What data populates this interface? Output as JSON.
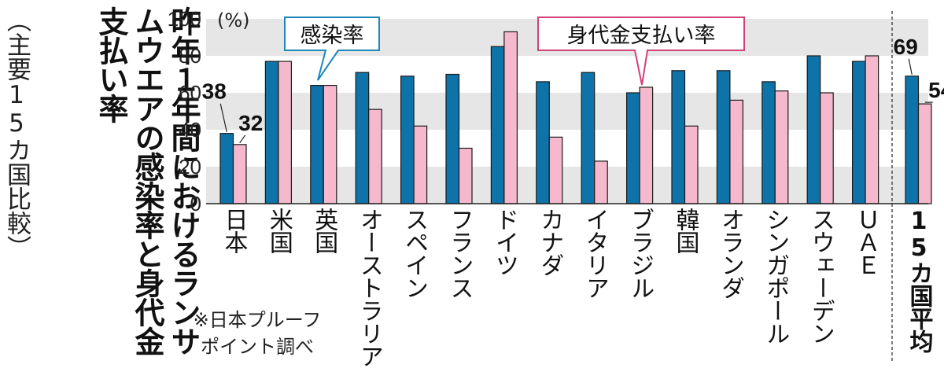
{
  "title": "昨年１年間におけるランサムウエアの感染率と身代金支払い率",
  "subtitle": "（主要15カ国比較）",
  "source": [
    "※日本プルーフ",
    "ポイント調べ"
  ],
  "colors": {
    "infection": "#0e73a8",
    "payment": "#f6b8cc",
    "grid_band": "#e6e6e6"
  },
  "chart_data": {
    "type": "bar",
    "ylabel": "(%)",
    "ylim": [
      0,
      100
    ],
    "yticks": [
      0,
      20,
      40,
      60,
      80,
      100
    ],
    "categories": [
      "日本",
      "米国",
      "英国",
      "オーストラリア",
      "スペイン",
      "フランス",
      "ドイツ",
      "カナダ",
      "イタリア",
      "ブラジル",
      "韓国",
      "オランダ",
      "シンガポール",
      "スウェーデン",
      "ＵＡＥ",
      "15カ国平均"
    ],
    "series": [
      {
        "name": "感染率",
        "values": [
          38,
          77,
          64,
          71,
          69,
          70,
          85,
          66,
          71,
          60,
          72,
          72,
          66,
          80,
          77,
          69
        ]
      },
      {
        "name": "身代金支払い率",
        "values": [
          32,
          77,
          64,
          51,
          42,
          30,
          93,
          36,
          23,
          63,
          42,
          56,
          61,
          60,
          80,
          54
        ]
      }
    ],
    "data_labels": [
      {
        "category": "日本",
        "series": "感染率",
        "text": "38"
      },
      {
        "category": "日本",
        "series": "身代金支払い率",
        "text": "32"
      },
      {
        "category": "15カ国平均",
        "series": "感染率",
        "text": "69"
      },
      {
        "category": "15カ国平均",
        "series": "身代金支払い率",
        "text": "54"
      }
    ],
    "grid": "banded"
  }
}
